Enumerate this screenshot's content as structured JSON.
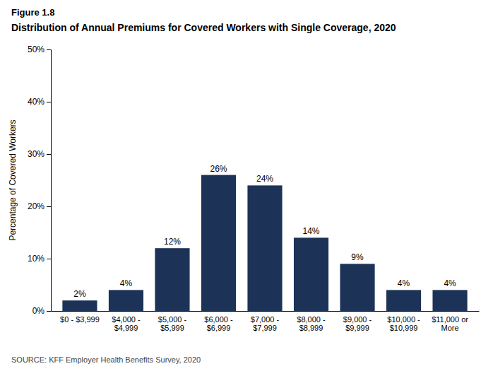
{
  "chart_data": {
    "type": "bar",
    "title": "Figure 1.8",
    "subtitle": "Distribution of Annual Premiums for Covered Workers with Single Coverage, 2020",
    "categories": [
      "$0 - $3,999",
      "$4,000 -\n$4,999",
      "$5,000 -\n$5,999",
      "$6,000 -\n$6,999",
      "$7,000 -\n$7,999",
      "$8,000 -\n$8,999",
      "$9,000 -\n$9,999",
      "$10,000 -\n$10,999",
      "$11,000 or\nMore"
    ],
    "values": [
      2,
      4,
      12,
      26,
      24,
      14,
      9,
      4,
      4
    ],
    "value_labels": [
      "2%",
      "4%",
      "12%",
      "26%",
      "24%",
      "14%",
      "9%",
      "4%",
      "4%"
    ],
    "data_labels": true,
    "color": "#1c3357",
    "ylabel": "Percentage of Covered Workers",
    "ylim": [
      0,
      50
    ],
    "yticks": [
      {
        "value": 0,
        "label": "0%"
      },
      {
        "value": 10,
        "label": "10%"
      },
      {
        "value": 20,
        "label": "20%"
      },
      {
        "value": 30,
        "label": "30%"
      },
      {
        "value": 40,
        "label": "40%"
      },
      {
        "value": 50,
        "label": "50%"
      }
    ],
    "grid": false,
    "source": "SOURCE: KFF Employer Health Benefits Survey, 2020"
  }
}
